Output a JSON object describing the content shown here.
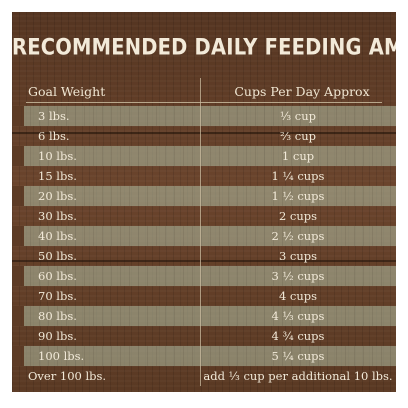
{
  "title": "RECOMMENDED DAILY FEEDING AMOUNTS:",
  "columns": {
    "goal_weight": "Goal Weight",
    "cups_per_day": "Cups Per Day  Approx"
  },
  "rows": [
    {
      "weight": "3 lbs.",
      "cups": "⅓ cup"
    },
    {
      "weight": "6 lbs.",
      "cups": "⅔ cup"
    },
    {
      "weight": "10 lbs.",
      "cups": "1 cup"
    },
    {
      "weight": "15 lbs.",
      "cups": "1 ¼ cups"
    },
    {
      "weight": "20 lbs.",
      "cups": "1 ½ cups"
    },
    {
      "weight": "30 lbs.",
      "cups": "2 cups"
    },
    {
      "weight": "40 lbs.",
      "cups": "2 ½ cups"
    },
    {
      "weight": "50 lbs.",
      "cups": "3 cups"
    },
    {
      "weight": "60 lbs.",
      "cups": "3 ½ cups"
    },
    {
      "weight": "70 lbs.",
      "cups": "4 cups"
    },
    {
      "weight": "80 lbs.",
      "cups": "4 ⅓ cups"
    },
    {
      "weight": "90 lbs.",
      "cups": "4 ¾ cups"
    },
    {
      "weight": "100 lbs.",
      "cups": "5 ¼ cups"
    },
    {
      "weight": "Over 100 lbs.",
      "cups": "add ⅓ cup per additional 10 lbs."
    }
  ]
}
